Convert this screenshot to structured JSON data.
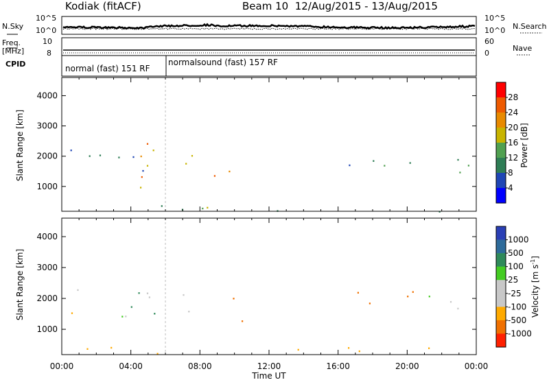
{
  "header": {
    "radar": "Kodiak (fitACF)",
    "beam_info": "Beam 10  12/Aug/2015 - 13/Aug/2015"
  },
  "params": {
    "nsky_label": "N.Sky",
    "nsky_ticks": [
      "10^5",
      "10^0"
    ],
    "nsearch_label": "N.Search",
    "nsearch_ticks": [
      "10^5",
      "10^0"
    ],
    "freq_label_1": "Freq.",
    "freq_label_2": "[MHz]",
    "freq_ticks": [
      "10",
      "8"
    ],
    "nave_label": "Nave",
    "nave_ticks": [
      "60",
      "0"
    ],
    "cpid_label": "CPID",
    "cpid_modes": [
      "normal (fast) 151 RF",
      "normalsound (fast) 157 RF"
    ]
  },
  "colors": {
    "power": [
      "#0000ff",
      "#1f46b5",
      "#2e7d55",
      "#50a050",
      "#c8b400",
      "#e88a00",
      "#ee5a00",
      "#ff0000"
    ],
    "velocity": [
      "#2a3fb5",
      "#2e6b9a",
      "#2f8a5a",
      "#44cc22",
      "#c8c8c8",
      "#c8c8c8",
      "#ffaa00",
      "#f07000",
      "#ff2000"
    ]
  },
  "chart_data": [
    {
      "type": "heatmap",
      "title": "",
      "ylabel": "Slant Range [km]",
      "xlabel": "",
      "ylim": [
        180,
        4600
      ],
      "yticks": [
        "1000",
        "2000",
        "3000",
        "4000"
      ],
      "x_ticks": [
        "00:00",
        "04:00",
        "08:00",
        "12:00",
        "16:00",
        "20:00",
        "00:00"
      ],
      "colorbar": {
        "label": "Power [dB]",
        "ticks": [
          "4",
          "8",
          "12",
          "16",
          "20",
          "24",
          "28"
        ]
      },
      "regions": [
        {
          "t0": 0.5,
          "t1": 5.6,
          "r0": 1300,
          "r1": 2300,
          "val": 9
        },
        {
          "t0": 2.5,
          "t1": 5.5,
          "r0": 1600,
          "r1": 2500,
          "val": 18
        },
        {
          "t0": 4.0,
          "t1": 5.6,
          "r0": 700,
          "r1": 2600,
          "val": 22
        },
        {
          "t0": 6.0,
          "t1": 8.7,
          "r0": 1600,
          "r1": 2200,
          "val": 14
        },
        {
          "t0": 8.7,
          "t1": 10.6,
          "r0": 1100,
          "r1": 2100,
          "val": 25
        },
        {
          "t0": 0.2,
          "t1": 24.0,
          "r0": 180,
          "r1": 400,
          "val": 12
        },
        {
          "t0": 16.0,
          "t1": 24.0,
          "r0": 1400,
          "r1": 2200,
          "val": 10
        }
      ]
    },
    {
      "type": "heatmap",
      "title": "",
      "ylabel": "Slant Range [km]",
      "xlabel": "Time UT",
      "ylim": [
        180,
        4600
      ],
      "yticks": [
        "1000",
        "2000",
        "3000",
        "4000"
      ],
      "x_ticks": [
        "00:00",
        "04:00",
        "08:00",
        "12:00",
        "16:00",
        "20:00",
        "00:00"
      ],
      "colorbar": {
        "label": "Velocity [m s",
        "label_sup": "-1",
        "label_end": "]",
        "ticks": [
          "1000",
          "500",
          "100",
          "25",
          "-25",
          "-100",
          "-500",
          "-1000"
        ]
      },
      "regions": [
        {
          "t0": 0.5,
          "t1": 5.5,
          "r0": 1300,
          "r1": 2300,
          "val": 0
        },
        {
          "t0": 4.0,
          "t1": 5.8,
          "r0": 700,
          "r1": 2400,
          "val": 300
        },
        {
          "t0": 6.0,
          "t1": 8.7,
          "r0": 1600,
          "r1": 2200,
          "val": 0
        },
        {
          "t0": 8.7,
          "t1": 10.6,
          "r0": 1100,
          "r1": 2100,
          "val": -200
        },
        {
          "t0": 0.2,
          "t1": 24.0,
          "r0": 180,
          "r1": 450,
          "val": -60
        },
        {
          "t0": 16.0,
          "t1": 20.5,
          "r0": 1700,
          "r1": 2400,
          "val": -300
        },
        {
          "t0": 20.0,
          "t1": 24.0,
          "r0": 1400,
          "r1": 2100,
          "val": 0
        }
      ]
    }
  ]
}
